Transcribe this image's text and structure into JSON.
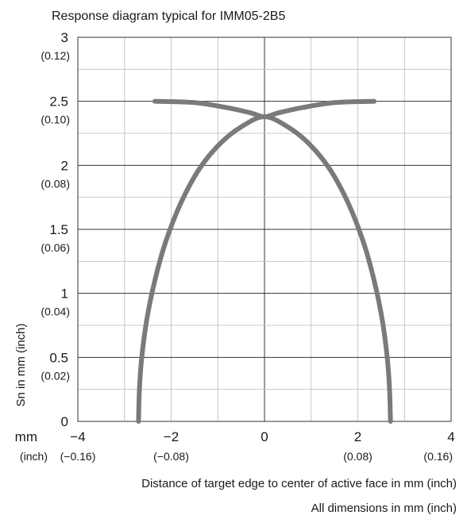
{
  "chart_data": {
    "type": "line",
    "title": "Response diagram typical for IMM05-2B5",
    "ylabel": "Sn in mm (inch)",
    "xlabel": "Distance of target edge to center of active face in mm (inch)",
    "note": "All dimensions in mm (inch)",
    "x_unit_label": "mm",
    "x_unit_label_inch": "(inch)",
    "xlim": [
      -4,
      4
    ],
    "ylim": [
      0,
      3
    ],
    "grid": true,
    "x_ticks": [
      {
        "value": -4,
        "mm": "−4",
        "inch": "(−0.16)"
      },
      {
        "value": -2,
        "mm": "−2",
        "inch": "(−0.08)"
      },
      {
        "value": 0,
        "mm": "0",
        "inch": ""
      },
      {
        "value": 2,
        "mm": "2",
        "inch": "(0.08)"
      },
      {
        "value": 4,
        "mm": "4",
        "inch": "(0.16)"
      }
    ],
    "y_ticks": [
      {
        "value": 3,
        "mm": "3",
        "inch": "(0.12)"
      },
      {
        "value": 2.5,
        "mm": "2.5",
        "inch": "(0.10)"
      },
      {
        "value": 2,
        "mm": "2",
        "inch": "(0.08)"
      },
      {
        "value": 1.5,
        "mm": "1.5",
        "inch": "(0.06)"
      },
      {
        "value": 1,
        "mm": "1",
        "inch": "(0.04)"
      },
      {
        "value": 0.5,
        "mm": "0.5",
        "inch": "(0.02)"
      },
      {
        "value": 0,
        "mm": "0",
        "inch": ""
      }
    ],
    "series": [
      {
        "color": "#7a7a7a",
        "points": [
          [
            -2.7,
            0
          ],
          [
            -2.68,
            0.25
          ],
          [
            -2.63,
            0.5
          ],
          [
            -2.52,
            0.8
          ],
          [
            -2.35,
            1.1
          ],
          [
            -2.12,
            1.4
          ],
          [
            -1.8,
            1.7
          ],
          [
            -1.4,
            1.97
          ],
          [
            -0.95,
            2.17
          ],
          [
            -0.5,
            2.3
          ],
          [
            0,
            2.38
          ],
          [
            0.5,
            2.3
          ],
          [
            0.95,
            2.17
          ],
          [
            1.4,
            1.97
          ],
          [
            1.8,
            1.7
          ],
          [
            2.12,
            1.4
          ],
          [
            2.35,
            1.1
          ],
          [
            2.52,
            0.8
          ],
          [
            2.63,
            0.5
          ],
          [
            2.68,
            0.25
          ],
          [
            2.7,
            0
          ]
        ]
      },
      {
        "color": "#7a7a7a",
        "points": [
          [
            -2.35,
            2.5
          ],
          [
            -1.5,
            2.49
          ],
          [
            -0.8,
            2.45
          ],
          [
            -0.3,
            2.41
          ],
          [
            0,
            2.38
          ],
          [
            0.3,
            2.41
          ],
          [
            0.8,
            2.45
          ],
          [
            1.5,
            2.49
          ],
          [
            2.35,
            2.5
          ]
        ]
      }
    ]
  }
}
